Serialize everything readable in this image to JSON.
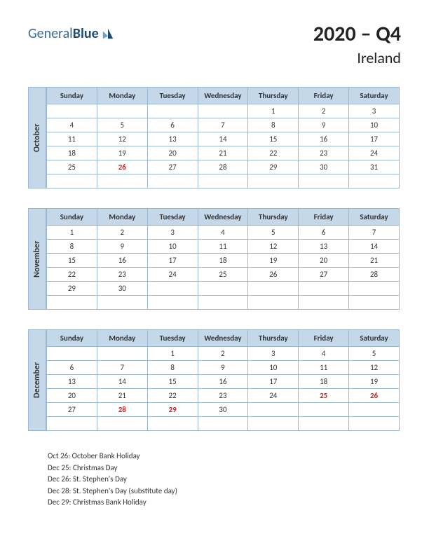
{
  "logo": {
    "text1": "General",
    "text2": "Blue"
  },
  "title": {
    "main": "2020 – Q4",
    "sub": "Ireland"
  },
  "colors": {
    "header_bg": "#c4d8ea",
    "border": "#9ab8d4",
    "holiday": "#d02020",
    "logo_light": "#6fa3d0",
    "logo_dark": "#1e4a7a"
  },
  "day_headers": [
    "Sunday",
    "Monday",
    "Tuesday",
    "Wednesday",
    "Thursday",
    "Friday",
    "Saturday"
  ],
  "months": [
    {
      "name": "October",
      "weeks": [
        [
          "",
          "",
          "",
          "",
          "1",
          "2",
          "3"
        ],
        [
          "4",
          "5",
          "6",
          "7",
          "8",
          "9",
          "10"
        ],
        [
          "11",
          "12",
          "13",
          "14",
          "15",
          "16",
          "17"
        ],
        [
          "18",
          "19",
          "20",
          "21",
          "22",
          "23",
          "24"
        ],
        [
          "25",
          "26",
          "27",
          "28",
          "29",
          "30",
          "31"
        ],
        [
          "",
          "",
          "",
          "",
          "",
          "",
          ""
        ]
      ],
      "holidays": [
        [
          4,
          1
        ]
      ]
    },
    {
      "name": "November",
      "weeks": [
        [
          "1",
          "2",
          "3",
          "4",
          "5",
          "6",
          "7"
        ],
        [
          "8",
          "9",
          "10",
          "11",
          "12",
          "13",
          "14"
        ],
        [
          "15",
          "16",
          "17",
          "18",
          "19",
          "20",
          "21"
        ],
        [
          "22",
          "23",
          "24",
          "25",
          "26",
          "27",
          "28"
        ],
        [
          "29",
          "30",
          "",
          "",
          "",
          "",
          ""
        ],
        [
          "",
          "",
          "",
          "",
          "",
          "",
          ""
        ]
      ],
      "holidays": []
    },
    {
      "name": "December",
      "weeks": [
        [
          "",
          "",
          "1",
          "2",
          "3",
          "4",
          "5"
        ],
        [
          "6",
          "7",
          "8",
          "9",
          "10",
          "11",
          "12"
        ],
        [
          "13",
          "14",
          "15",
          "16",
          "17",
          "18",
          "19"
        ],
        [
          "20",
          "21",
          "22",
          "23",
          "24",
          "25",
          "26"
        ],
        [
          "27",
          "28",
          "29",
          "30",
          "",
          "",
          ""
        ],
        [
          "",
          "",
          "",
          "",
          "",
          "",
          ""
        ]
      ],
      "holidays": [
        [
          3,
          5
        ],
        [
          3,
          6
        ],
        [
          4,
          1
        ],
        [
          4,
          2
        ]
      ]
    }
  ],
  "holiday_list": [
    "Oct 26: October Bank Holiday",
    "Dec 25: Christmas Day",
    "Dec 26: St. Stephen's Day",
    "Dec 28: St. Stephen's Day (substitute day)",
    "Dec 29: Christmas Bank Holiday"
  ]
}
